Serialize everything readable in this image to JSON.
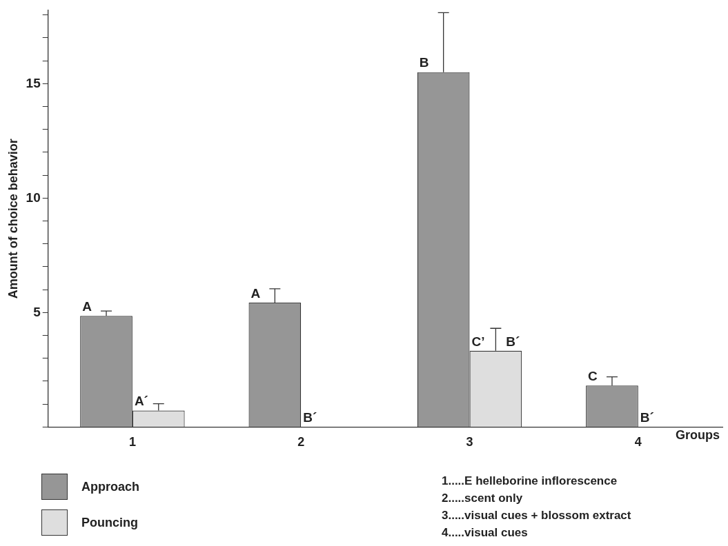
{
  "chart_data": {
    "type": "bar",
    "xlabel": "Groups",
    "ylabel": "Amount of choice behavior",
    "categories": [
      "1",
      "2",
      "3",
      "4"
    ],
    "series": [
      {
        "name": "Approach",
        "color": "#969696",
        "values": [
          4.85,
          5.43,
          15.5,
          1.81
        ],
        "errors": [
          [
            4.85,
            5.07
          ],
          [
            5.43,
            6.04
          ],
          [
            15.5,
            18.1
          ],
          [
            1.81,
            2.19
          ]
        ],
        "value_labels": [
          "A",
          "A",
          "B",
          "C"
        ]
      },
      {
        "name": "Pouncing",
        "color": "#dedede",
        "values": [
          0.72,
          0,
          3.33,
          0
        ],
        "errors": [
          [
            0.72,
            1.02
          ],
          null,
          [
            3.33,
            4.31
          ],
          null
        ],
        "value_labels": [
          "A´",
          "B´",
          "C’ B´",
          "B´"
        ]
      }
    ],
    "ylim": [
      0,
      18.2
    ],
    "yticks": [
      {
        "value": 0,
        "label": null
      },
      {
        "value": 1,
        "label": null
      },
      {
        "value": 2,
        "label": null
      },
      {
        "value": 3,
        "label": null
      },
      {
        "value": 4,
        "label": null
      },
      5,
      {
        "value": 6,
        "label": null
      },
      {
        "value": 7,
        "label": null
      },
      {
        "value": 8,
        "label": null
      },
      {
        "value": 9,
        "label": null
      },
      10,
      {
        "value": 11,
        "label": null
      },
      {
        "value": 12,
        "label": null
      },
      {
        "value": 13,
        "label": null
      },
      {
        "value": 14,
        "label": null
      },
      15,
      {
        "value": 16,
        "label": null
      },
      {
        "value": 17,
        "label": null
      },
      {
        "value": 18,
        "label": null
      }
    ],
    "grid": false,
    "legend": "bottom left",
    "annotations": [
      "1.....E helleborine inflorescence",
      "2.....scent only",
      "3.....visual cues +  blossom extract",
      "4.....visual cues"
    ]
  }
}
